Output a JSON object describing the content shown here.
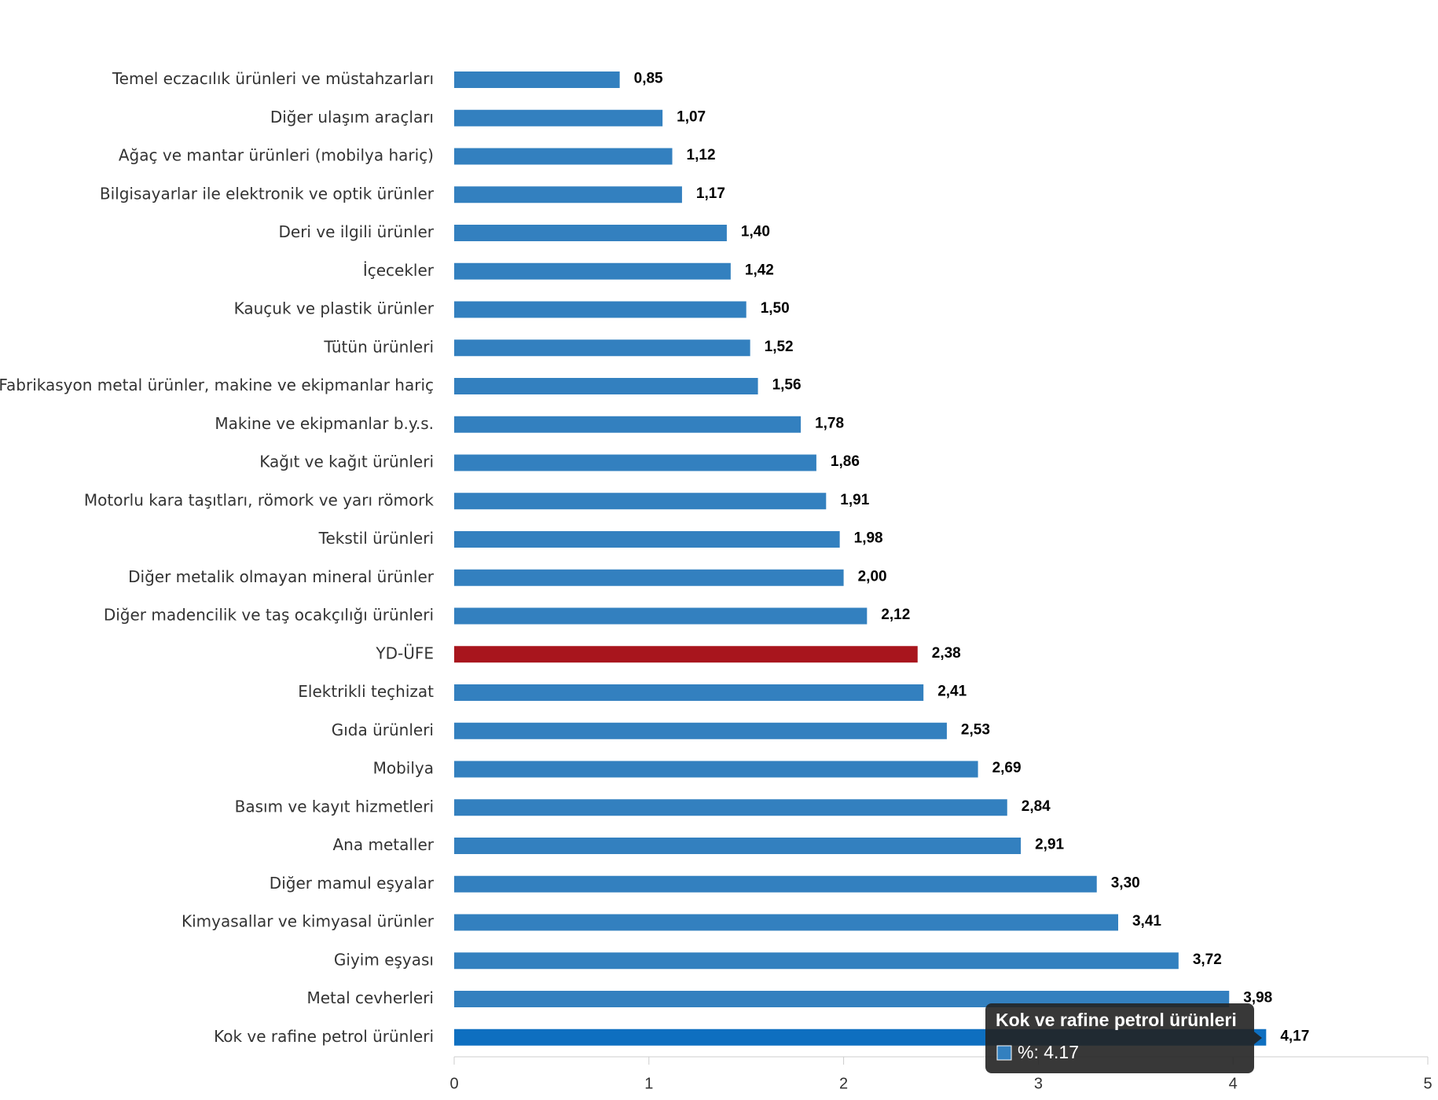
{
  "chart_data": {
    "type": "barh",
    "categories": [
      "Temel eczacılık ürünleri ve müstahzarları",
      "Diğer ulaşım araçları",
      "Ağaç ve mantar ürünleri (mobilya hariç)",
      "Bilgisayarlar ile elektronik ve optik ürünler",
      "Deri ve ilgili ürünler",
      "İçecekler",
      "Kauçuk ve plastik ürünler",
      "Tütün ürünleri",
      "Fabrikasyon metal ürünler, makine ve ekipmanlar hariç",
      "Makine ve ekipmanlar b.y.s.",
      "Kağıt ve kağıt ürünleri",
      "Motorlu kara taşıtları, römork ve yarı römork",
      "Tekstil ürünleri",
      "Diğer metalik olmayan mineral ürünler",
      "Diğer madencilik ve taş ocakçılığı ürünleri",
      "YD-ÜFE",
      "Elektrikli teçhizat",
      "Gıda ürünleri",
      "Mobilya",
      "Basım ve kayıt hizmetleri",
      "Ana metaller",
      "Diğer mamul eşyalar",
      "Kimyasallar ve kimyasal ürünler",
      "Giyim eşyası",
      "Metal cevherleri",
      "Kok ve rafine petrol ürünleri"
    ],
    "values": [
      0.85,
      1.07,
      1.12,
      1.17,
      1.4,
      1.42,
      1.5,
      1.52,
      1.56,
      1.78,
      1.86,
      1.91,
      1.98,
      2.0,
      2.12,
      2.38,
      2.41,
      2.53,
      2.69,
      2.84,
      2.91,
      3.3,
      3.41,
      3.72,
      3.98,
      4.17
    ],
    "value_labels": [
      "0,85",
      "1,07",
      "1,12",
      "1,17",
      "1,40",
      "1,42",
      "1,50",
      "1,52",
      "1,56",
      "1,78",
      "1,86",
      "1,91",
      "1,98",
      "2,00",
      "2,12",
      "2,38",
      "2,41",
      "2,53",
      "2,69",
      "2,84",
      "2,91",
      "3,30",
      "3,41",
      "3,72",
      "3,98",
      "4,17"
    ],
    "color": "#3380bf",
    "highlight": {
      "index": 15,
      "color": "#a8151d"
    },
    "hover": {
      "index": 25,
      "color": "#0e6fc0"
    },
    "xlim": [
      0,
      5
    ],
    "xticks": [
      0,
      1,
      2,
      3,
      4,
      5
    ],
    "tooltip": {
      "title": "Kok ve rafine petrol ürünleri",
      "text": "%: 4.17"
    }
  }
}
